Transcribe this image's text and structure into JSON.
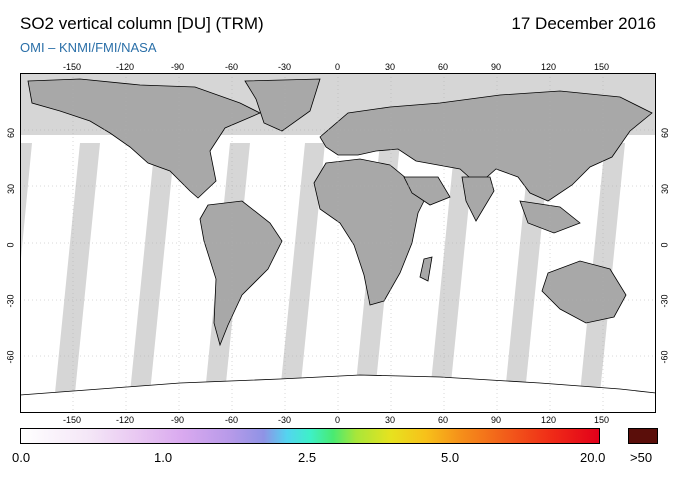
{
  "header": {
    "title": "SO2 vertical column [DU] (TRM)",
    "date": "17 December 2016",
    "subtitle": "OMI  –  KNMI/FMI/NASA"
  },
  "map": {
    "lon_ticks": [
      "-150",
      "-120",
      "-90",
      "-60",
      "-30",
      "0",
      "30",
      "60",
      "90",
      "120",
      "150"
    ],
    "lat_ticks": [
      "60",
      "30",
      "0",
      "-30",
      "-60"
    ],
    "colors": {
      "ocean": "#ffffff",
      "land": "#a8a8a8",
      "no_data": "#d6d6d6",
      "coast": "#000000"
    }
  },
  "colorbar": {
    "labels": [
      "0.0",
      "1.0",
      "2.5",
      "5.0",
      "20.0",
      ">50"
    ],
    "overflow_color": "#5a0e0a"
  }
}
